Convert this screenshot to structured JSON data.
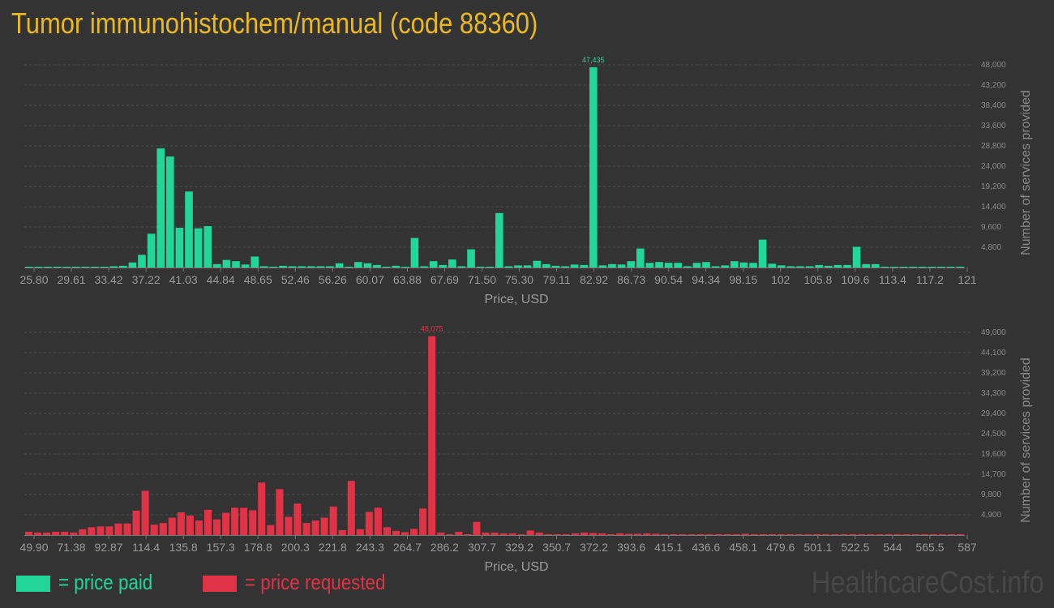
{
  "page_title": "Tumor immunohistochem/manual (code 88360)",
  "legend": {
    "paid_label": "= price paid",
    "requested_label": "= price requested",
    "paid_color": "#22d69a",
    "requested_color": "#e03345"
  },
  "watermark": "HealthcareCost.info",
  "chart_data": [
    {
      "type": "bar",
      "xlabel": "Price, USD",
      "ylabel": "Number of services provided",
      "color": "#22d69a",
      "ylim": [
        0,
        48000
      ],
      "yticks": [
        "4,800",
        "9,600",
        "14,400",
        "19,200",
        "24,000",
        "28,800",
        "33,600",
        "38,400",
        "43,200",
        "48,000"
      ],
      "x_tick_labels": [
        "25.80",
        "29.61",
        "33.42",
        "37.22",
        "41.03",
        "44.84",
        "48.65",
        "52.46",
        "56.26",
        "60.07",
        "63.88",
        "67.69",
        "71.50",
        "75.30",
        "79.11",
        "82.92",
        "86.73",
        "90.54",
        "94.34",
        "98.15",
        "102",
        "105.8",
        "109.6",
        "113.4",
        "117.2",
        "121"
      ],
      "x_range": [
        25.8,
        121
      ],
      "peak_label": "47,435",
      "values": [
        150,
        150,
        0,
        0,
        0,
        0,
        0,
        80,
        100,
        300,
        400,
        1200,
        3000,
        8000,
        28200,
        26300,
        9400,
        18000,
        9300,
        9800,
        800,
        1800,
        1500,
        700,
        2600,
        300,
        200,
        400,
        300,
        300,
        300,
        300,
        300,
        1000,
        0,
        1300,
        1000,
        600,
        200,
        400,
        0,
        7000,
        300,
        1500,
        600,
        1900,
        300,
        4300,
        200,
        200,
        12900,
        300,
        500,
        500,
        1600,
        800,
        400,
        300,
        700,
        600,
        47435,
        500,
        800,
        700,
        1500,
        4500,
        1100,
        1300,
        1100,
        1100,
        300,
        1100,
        1300,
        300,
        500,
        1500,
        1200,
        1100,
        6600,
        900,
        500,
        300,
        300,
        300,
        600,
        400,
        600,
        600,
        4900,
        800,
        800,
        200,
        0,
        0,
        0,
        0,
        0,
        0,
        0,
        200
      ]
    },
    {
      "type": "bar",
      "xlabel": "Price, USD",
      "ylabel": "Number of services provided",
      "color": "#e03345",
      "ylim": [
        0,
        49000
      ],
      "yticks": [
        "4,900",
        "9,800",
        "14,700",
        "19,600",
        "24,500",
        "29,400",
        "34,300",
        "39,200",
        "44,100",
        "49,000"
      ],
      "x_tick_labels": [
        "49.90",
        "71.38",
        "92.87",
        "114.4",
        "135.8",
        "157.3",
        "178.8",
        "200.3",
        "221.8",
        "243.3",
        "264.7",
        "286.2",
        "307.7",
        "329.2",
        "350.7",
        "372.2",
        "393.6",
        "415.1",
        "436.6",
        "458.1",
        "479.6",
        "501.1",
        "522.5",
        "544",
        "565.5",
        "587"
      ],
      "x_range": [
        49.9,
        587
      ],
      "peak_label": "48,075",
      "values": [
        800,
        600,
        600,
        800,
        800,
        600,
        1400,
        1900,
        2100,
        2100,
        2800,
        2800,
        5900,
        10700,
        2500,
        2900,
        4200,
        5500,
        4700,
        3500,
        6100,
        3800,
        5400,
        6600,
        6600,
        6000,
        12700,
        2400,
        11100,
        4400,
        7600,
        2900,
        3500,
        4200,
        6900,
        1200,
        13100,
        1400,
        5600,
        6600,
        1900,
        1000,
        700,
        1500,
        6400,
        48075,
        600,
        0,
        800,
        0,
        3200,
        600,
        600,
        400,
        400,
        0,
        1100,
        600,
        0,
        0,
        0,
        400,
        600,
        500,
        400,
        0,
        400,
        300,
        300,
        400,
        300,
        0,
        0,
        0,
        200,
        0,
        0,
        0,
        0,
        0,
        300,
        0,
        0,
        0,
        0,
        0,
        0,
        0,
        0,
        0,
        0,
        0,
        0,
        0,
        0,
        0,
        0,
        100,
        200,
        0,
        0,
        0,
        100,
        100,
        100
      ]
    }
  ]
}
